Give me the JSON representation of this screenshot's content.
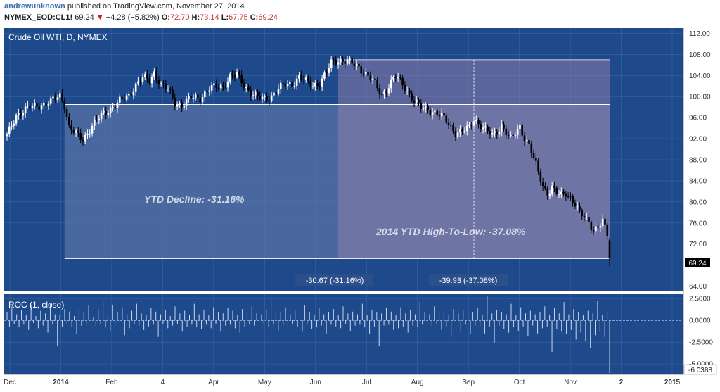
{
  "header": {
    "user": "andrewunknown",
    "published": "published on TradingView.com, November 27, 2014",
    "symbol": "NYMEX_EOD:CL1!",
    "last": "69.24",
    "change": "−4.28 (−5.82%)",
    "o_label": "O:",
    "o_val": "72.70",
    "h_label": "H:",
    "h_val": "73.14",
    "l_label": "L:",
    "l_val": "67.75",
    "c_label": "C:",
    "c_val": "69.24"
  },
  "colors": {
    "background": "#1e4a8c",
    "grid": "#3a64a6",
    "candle_up": "#ffffff",
    "candle_down": "#000000",
    "box_ytd": "#5a74a6",
    "box_high": "#8c7ea8",
    "accent_label": "#2b4f8a"
  },
  "chart_data": [
    {
      "type": "candlestick",
      "title": "Crude Oil WTI, D, NYMEX",
      "y_ticks": [
        "112.00",
        "108.00",
        "104.00",
        "100.00",
        "96.00",
        "92.00",
        "88.00",
        "84.00",
        "80.00",
        "76.00",
        "72.00",
        "68.00",
        "64.00"
      ],
      "ylim": [
        63,
        113
      ],
      "x_ticks": [
        "Dec",
        "2014",
        "Feb",
        "4",
        "Apr",
        "May",
        "Jun",
        "Jul",
        "Aug",
        "Sep",
        "Oct",
        "Nov",
        "2",
        "2015"
      ],
      "last_price_label": "69.24",
      "annotations": [
        {
          "text": "YTD Decline: -31.16%"
        },
        {
          "text": "2014 YTD High-To-Low: -37.08%"
        },
        {
          "text": "-30.67 (-31.16%)"
        },
        {
          "text": "-39.93 (-37.08%)"
        }
      ],
      "close_points": [
        {
          "x": 0,
          "y": 92.5
        },
        {
          "x": 4,
          "y": 96.5
        },
        {
          "x": 9,
          "y": 97.8
        },
        {
          "x": 14,
          "y": 98.4
        },
        {
          "x": 19,
          "y": 99.0
        },
        {
          "x": 23,
          "y": 100.2
        },
        {
          "x": 25,
          "y": 98.5
        },
        {
          "x": 27,
          "y": 94.2
        },
        {
          "x": 30,
          "y": 92.8
        },
        {
          "x": 33,
          "y": 91.8
        },
        {
          "x": 37,
          "y": 94.5
        },
        {
          "x": 41,
          "y": 96.4
        },
        {
          "x": 45,
          "y": 97.8
        },
        {
          "x": 49,
          "y": 99.1
        },
        {
          "x": 53,
          "y": 100.2
        },
        {
          "x": 56,
          "y": 102.3
        },
        {
          "x": 59,
          "y": 103.6
        },
        {
          "x": 62,
          "y": 103.0
        },
        {
          "x": 64,
          "y": 104.6
        },
        {
          "x": 67,
          "y": 102.2
        },
        {
          "x": 70,
          "y": 101.3
        },
        {
          "x": 73,
          "y": 98.8
        },
        {
          "x": 76,
          "y": 98.4
        },
        {
          "x": 80,
          "y": 99.8
        },
        {
          "x": 84,
          "y": 99.8
        },
        {
          "x": 88,
          "y": 101.5
        },
        {
          "x": 91,
          "y": 101.8
        },
        {
          "x": 94,
          "y": 102.0
        },
        {
          "x": 97,
          "y": 103.8
        },
        {
          "x": 100,
          "y": 104.1
        },
        {
          "x": 103,
          "y": 102.2
        },
        {
          "x": 106,
          "y": 100.8
        },
        {
          "x": 109,
          "y": 99.8
        },
        {
          "x": 112,
          "y": 99.5
        },
        {
          "x": 115,
          "y": 100.2
        },
        {
          "x": 118,
          "y": 101.5
        },
        {
          "x": 121,
          "y": 102.3
        },
        {
          "x": 124,
          "y": 102.4
        },
        {
          "x": 127,
          "y": 103.8
        },
        {
          "x": 130,
          "y": 102.8
        },
        {
          "x": 133,
          "y": 102.2
        },
        {
          "x": 136,
          "y": 102.6
        },
        {
          "x": 139,
          "y": 104.5
        },
        {
          "x": 141,
          "y": 106.4
        },
        {
          "x": 144,
          "y": 107.0
        },
        {
          "x": 147,
          "y": 106.8
        },
        {
          "x": 150,
          "y": 106.2
        },
        {
          "x": 153,
          "y": 105.6
        },
        {
          "x": 156,
          "y": 104.4
        },
        {
          "x": 159,
          "y": 103.0
        },
        {
          "x": 161,
          "y": 101.6
        },
        {
          "x": 163,
          "y": 100.3
        },
        {
          "x": 165,
          "y": 101.4
        },
        {
          "x": 167,
          "y": 102.8
        },
        {
          "x": 169,
          "y": 103.8
        },
        {
          "x": 171,
          "y": 102.8
        },
        {
          "x": 174,
          "y": 101.2
        },
        {
          "x": 177,
          "y": 99.2
        },
        {
          "x": 180,
          "y": 97.8
        },
        {
          "x": 183,
          "y": 97.6
        },
        {
          "x": 186,
          "y": 97.0
        },
        {
          "x": 189,
          "y": 96.2
        },
        {
          "x": 192,
          "y": 94.8
        },
        {
          "x": 195,
          "y": 93.2
        },
        {
          "x": 198,
          "y": 93.4
        },
        {
          "x": 201,
          "y": 94.0
        },
        {
          "x": 203,
          "y": 95.8
        },
        {
          "x": 205,
          "y": 95.0
        },
        {
          "x": 208,
          "y": 93.6
        },
        {
          "x": 211,
          "y": 92.6
        },
        {
          "x": 213,
          "y": 93.4
        },
        {
          "x": 215,
          "y": 94.6
        },
        {
          "x": 217,
          "y": 93.2
        },
        {
          "x": 219,
          "y": 91.8
        },
        {
          "x": 221,
          "y": 93.0
        },
        {
          "x": 223,
          "y": 94.4
        },
        {
          "x": 225,
          "y": 92.2
        },
        {
          "x": 227,
          "y": 90.8
        },
        {
          "x": 229,
          "y": 88.2
        },
        {
          "x": 231,
          "y": 85.6
        },
        {
          "x": 233,
          "y": 83.0
        },
        {
          "x": 235,
          "y": 81.8
        },
        {
          "x": 237,
          "y": 82.6
        },
        {
          "x": 239,
          "y": 81.6
        },
        {
          "x": 241,
          "y": 81.2
        },
        {
          "x": 243,
          "y": 81.8
        },
        {
          "x": 245,
          "y": 80.8
        },
        {
          "x": 247,
          "y": 79.6
        },
        {
          "x": 249,
          "y": 77.6
        },
        {
          "x": 251,
          "y": 77.2
        },
        {
          "x": 253,
          "y": 76.2
        },
        {
          "x": 255,
          "y": 74.8
        },
        {
          "x": 257,
          "y": 75.2
        },
        {
          "x": 259,
          "y": 76.2
        },
        {
          "x": 261,
          "y": 73.7
        },
        {
          "x": 262,
          "y": 69.24
        }
      ]
    },
    {
      "type": "bar",
      "title": "ROC (1, close)",
      "y_ticks": [
        "2.5000",
        "0.0000",
        "-2.5000",
        "-5.0000"
      ],
      "ylim": [
        -6.2,
        3.0
      ],
      "last_value_label": "-6.0388",
      "values": [
        0.9,
        -0.7,
        1.6,
        -0.4,
        0.7,
        -0.8,
        1.2,
        -0.5,
        0.6,
        -1.1,
        1.8,
        -0.3,
        0.5,
        -0.9,
        1.1,
        -0.6,
        0.8,
        -1.4,
        1.9,
        -0.5,
        0.7,
        -2.9,
        0.6,
        -0.7,
        1.3,
        -0.4,
        1.0,
        -0.8,
        0.5,
        -1.6,
        1.4,
        -0.6,
        0.9,
        -0.5,
        1.7,
        -1.0,
        0.4,
        -0.6,
        1.3,
        -0.4,
        2.2,
        -0.8,
        0.6,
        -1.2,
        1.8,
        -0.5,
        0.9,
        -0.3,
        1.5,
        -1.7,
        0.7,
        -0.9,
        1.1,
        -0.4,
        1.9,
        -0.6,
        0.8,
        -1.1,
        0.6,
        -0.7,
        1.4,
        -0.5,
        1.0,
        -1.9,
        0.7,
        -0.4,
        1.2,
        -0.9,
        0.5,
        -0.6,
        1.6,
        -0.4,
        0.8,
        -1.3,
        1.1,
        -0.7,
        0.6,
        -0.5,
        1.9,
        -0.8,
        0.7,
        -1.0,
        1.2,
        -0.5,
        0.6,
        -0.9,
        1.5,
        -0.4,
        0.9,
        -1.2,
        0.8,
        -0.6,
        1.4,
        -0.5,
        1.1,
        -0.9,
        0.6,
        -1.4,
        1.3,
        -0.7,
        0.9,
        -0.5,
        1.6,
        -0.6,
        0.8,
        -1.8,
        0.7,
        -0.4,
        1.2,
        -0.8,
        2.6,
        -0.5,
        0.8,
        -1.2,
        1.0,
        -0.6,
        1.5,
        -0.9,
        0.7,
        -0.4,
        1.2,
        -0.7,
        0.6,
        -1.3,
        1.7,
        -0.5,
        0.9,
        -1.0,
        0.6,
        -0.8,
        1.4,
        -0.6,
        0.7,
        -1.5,
        0.9,
        -0.5,
        1.3,
        -0.7,
        0.6,
        -0.9,
        1.6,
        -0.4,
        0.8,
        -1.2,
        1.0,
        -0.6,
        0.7,
        -0.5,
        1.9,
        -0.8,
        0.6,
        -1.6,
        1.2,
        -0.7,
        0.9,
        -2.9,
        0.8,
        -0.6,
        1.4,
        -0.5,
        1.0,
        -1.1,
        0.6,
        -0.9,
        1.5,
        -0.7,
        0.8,
        -1.4,
        1.2,
        -0.6,
        0.7,
        -0.8,
        2.1,
        -0.5,
        0.9,
        -1.3,
        0.7,
        -0.6,
        1.6,
        -0.4,
        0.8,
        -1.1,
        1.0,
        -0.7,
        0.6,
        -1.9,
        1.3,
        -0.6,
        0.8,
        -1.2,
        1.1,
        -0.5,
        0.7,
        -1.6,
        0.9,
        -0.6,
        1.4,
        -0.8,
        0.6,
        -1.5,
        2.8,
        -0.7,
        0.8,
        -2.6,
        1.2,
        -0.6,
        0.9,
        -1.0,
        0.7,
        -1.4,
        1.9,
        -0.8,
        0.6,
        -1.2,
        1.5,
        -0.7,
        0.8,
        -1.8,
        1.1,
        -0.6,
        0.7,
        -1.5,
        0.9,
        -0.9,
        1.6,
        -0.7,
        0.6,
        -3.6,
        1.4,
        -1.0,
        0.8,
        -1.3,
        2.1,
        -1.6,
        0.7,
        -1.1,
        1.3,
        -2.2,
        0.9,
        -1.4,
        0.6,
        -2.4,
        1.1,
        -3.2,
        0.8,
        -1.7,
        2.2,
        -1.3,
        0.6,
        -1.9,
        0.9,
        -6.0388
      ]
    }
  ]
}
